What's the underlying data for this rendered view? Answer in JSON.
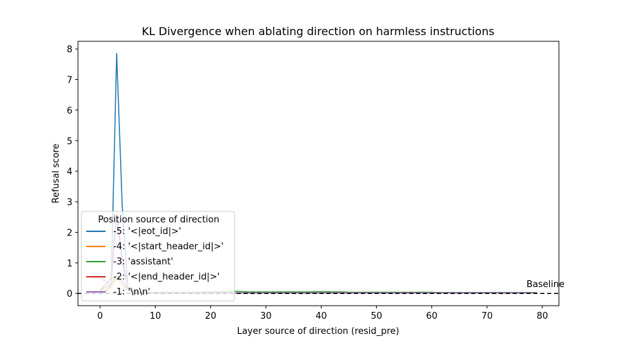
{
  "chart_data": {
    "type": "line",
    "title": "KL Divergence when ablating direction on harmless instructions",
    "xlabel": "Layer source of direction (resid_pre)",
    "ylabel": "Refusal score",
    "xlim": [
      -4,
      83
    ],
    "ylim": [
      -0.4,
      8.25
    ],
    "xticks": [
      0,
      10,
      20,
      30,
      40,
      50,
      60,
      70,
      80
    ],
    "yticks": [
      0,
      1,
      2,
      3,
      4,
      5,
      6,
      7,
      8
    ],
    "grid": false,
    "legend_title": "Position source of direction",
    "legend_position": "lower-left",
    "baseline": {
      "value": 0,
      "label": "Baseline",
      "style": "dashed",
      "color": "#000000"
    },
    "x": [
      0,
      1,
      2,
      3,
      4,
      5,
      6,
      7,
      8,
      9,
      10,
      11,
      12,
      13,
      14,
      15,
      16,
      17,
      18,
      19,
      20,
      21,
      22,
      23,
      24,
      25,
      26,
      27,
      28,
      29,
      30,
      31,
      32,
      33,
      34,
      35,
      36,
      37,
      38,
      39,
      40,
      41,
      42,
      43,
      44,
      45,
      46,
      47,
      48,
      49,
      50,
      51,
      52,
      53,
      54,
      55,
      56,
      57,
      58,
      59,
      60,
      61,
      62,
      63,
      64,
      65,
      66,
      67,
      68,
      69,
      70,
      71,
      72,
      73,
      74,
      75,
      76,
      77,
      78,
      79
    ],
    "series": [
      {
        "name": "-5: '<|eot_id|>'",
        "color": "#1f77b4",
        "values": [
          0.1,
          0.05,
          0.3,
          7.85,
          2.9,
          0.2,
          0.05,
          0.02,
          0.02,
          0.02,
          0.02,
          0.02,
          0.02,
          0.02,
          0.02,
          0.02,
          0.02,
          0.02,
          0.02,
          0.02,
          0.02,
          0.02,
          0.02,
          0.02,
          0.02,
          0.02,
          0.02,
          0.02,
          0.02,
          0.02,
          0.02,
          0.02,
          0.02,
          0.02,
          0.02,
          0.02,
          0.02,
          0.02,
          0.02,
          0.02,
          0.02,
          0.02,
          0.02,
          0.02,
          0.02,
          0.02,
          0.02,
          0.02,
          0.02,
          0.02,
          0.02,
          0.02,
          0.02,
          0.02,
          0.02,
          0.02,
          0.02,
          0.02,
          0.02,
          0.02,
          0.02,
          0.02,
          0.02,
          0.02,
          0.02,
          0.02,
          0.02,
          0.02,
          0.02,
          0.02,
          0.02,
          0.02,
          0.02,
          0.02,
          0.02,
          0.02,
          0.02,
          0.02,
          0.02,
          0.02
        ]
      },
      {
        "name": "-4: '<|start_header_id|>'",
        "color": "#ff7f0e",
        "values": [
          0.05,
          0.1,
          0.2,
          0.5,
          0.3,
          0.1,
          0.05,
          0.03,
          0.02,
          0.02,
          0.02,
          0.02,
          0.02,
          0.02,
          0.02,
          0.02,
          0.02,
          0.02,
          0.02,
          0.02,
          0.02,
          0.02,
          0.02,
          0.02,
          0.02,
          0.02,
          0.02,
          0.02,
          0.02,
          0.02,
          0.02,
          0.02,
          0.02,
          0.02,
          0.02,
          0.02,
          0.02,
          0.02,
          0.02,
          0.02,
          0.02,
          0.02,
          0.02,
          0.02,
          0.02,
          0.02,
          0.02,
          0.02,
          0.02,
          0.02,
          0.02,
          0.02,
          0.02,
          0.02,
          0.02,
          0.02,
          0.02,
          0.02,
          0.02,
          0.02,
          0.02,
          0.02,
          0.02,
          0.02,
          0.02,
          0.02,
          0.02,
          0.02,
          0.02,
          0.02,
          0.02,
          0.02,
          0.02,
          0.02,
          0.02,
          0.02,
          0.02,
          0.02,
          0.02,
          0.02
        ]
      },
      {
        "name": "-3: 'assistant'",
        "color": "#2ca02c",
        "values": [
          0.1,
          0.2,
          0.3,
          0.6,
          0.4,
          0.15,
          0.08,
          0.05,
          0.04,
          0.04,
          0.04,
          0.04,
          0.04,
          0.04,
          0.04,
          0.04,
          0.04,
          0.04,
          0.04,
          0.05,
          0.05,
          0.05,
          0.05,
          0.06,
          0.07,
          0.07,
          0.06,
          0.05,
          0.05,
          0.05,
          0.05,
          0.05,
          0.05,
          0.05,
          0.05,
          0.05,
          0.05,
          0.05,
          0.05,
          0.06,
          0.06,
          0.06,
          0.05,
          0.05,
          0.05,
          0.04,
          0.04,
          0.04,
          0.04,
          0.04,
          0.04,
          0.04,
          0.04,
          0.04,
          0.04,
          0.04,
          0.04,
          0.04,
          0.04,
          0.04,
          0.04,
          0.03,
          0.03,
          0.03,
          0.03,
          0.03,
          0.03,
          0.03,
          0.03,
          0.03,
          0.03,
          0.03,
          0.03,
          0.03,
          0.03,
          0.03,
          0.03,
          0.03,
          0.03,
          0.03
        ]
      },
      {
        "name": "-2: '<|end_header_id|>'",
        "color": "#d62728",
        "values": [
          0.1,
          0.3,
          0.5,
          2.6,
          1.2,
          0.2,
          0.05,
          0.03,
          0.02,
          0.02,
          0.02,
          0.02,
          0.02,
          0.02,
          0.02,
          0.02,
          0.02,
          0.02,
          0.02,
          0.02,
          0.02,
          0.02,
          0.02,
          0.02,
          0.02,
          0.02,
          0.02,
          0.02,
          0.02,
          0.02,
          0.02,
          0.02,
          0.02,
          0.02,
          0.02,
          0.02,
          0.02,
          0.02,
          0.02,
          0.02,
          0.02,
          0.02,
          0.02,
          0.02,
          0.02,
          0.02,
          0.02,
          0.02,
          0.02,
          0.02,
          0.02,
          0.02,
          0.02,
          0.02,
          0.02,
          0.02,
          0.02,
          0.02,
          0.02,
          0.02,
          0.02,
          0.02,
          0.02,
          0.02,
          0.02,
          0.02,
          0.02,
          0.02,
          0.02,
          0.02,
          0.02,
          0.02,
          0.02,
          0.02,
          0.02,
          0.02,
          0.02,
          0.02,
          0.02,
          0.02
        ]
      },
      {
        "name": "-1: '\\n\\n'",
        "color": "#9467bd",
        "values": [
          0.5,
          0.4,
          0.3,
          2.5,
          1.0,
          0.2,
          0.05,
          0.03,
          0.02,
          0.02,
          0.02,
          0.02,
          0.02,
          0.02,
          0.02,
          0.02,
          0.02,
          0.02,
          0.02,
          0.02,
          0.02,
          0.02,
          0.02,
          0.02,
          0.02,
          0.02,
          0.02,
          0.02,
          0.02,
          0.02,
          0.02,
          0.02,
          0.02,
          0.02,
          0.02,
          0.02,
          0.02,
          0.02,
          0.02,
          0.02,
          0.02,
          0.02,
          0.02,
          0.02,
          0.02,
          0.02,
          0.02,
          0.02,
          0.02,
          0.02,
          0.02,
          0.02,
          0.02,
          0.02,
          0.02,
          0.02,
          0.02,
          0.02,
          0.02,
          0.02,
          0.02,
          0.02,
          0.02,
          0.02,
          0.02,
          0.02,
          0.02,
          0.02,
          0.02,
          0.02,
          0.02,
          0.02,
          0.02,
          0.02,
          0.02,
          0.02,
          0.02,
          0.02,
          0.02,
          0.02
        ]
      }
    ]
  }
}
